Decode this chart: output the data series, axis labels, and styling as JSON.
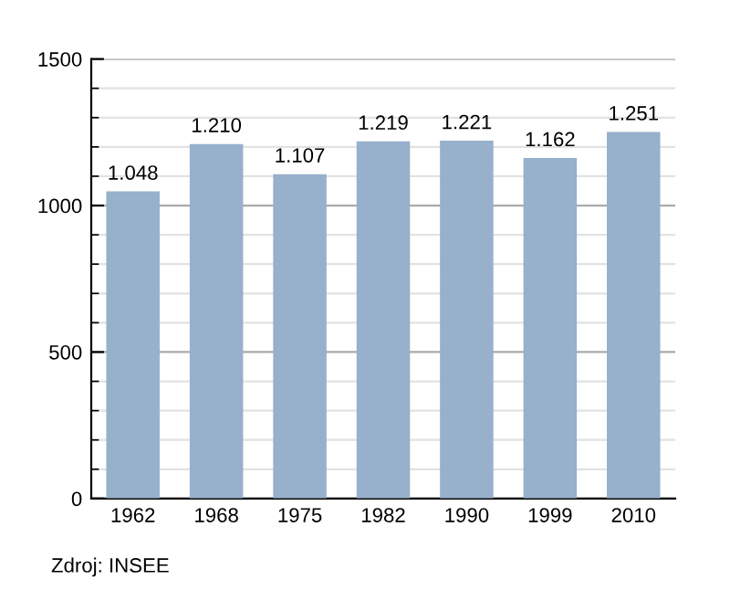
{
  "chart_data": {
    "type": "bar",
    "categories": [
      "1962",
      "1968",
      "1975",
      "1982",
      "1990",
      "1999",
      "2010"
    ],
    "values": [
      1048,
      1210,
      1107,
      1219,
      1221,
      1162,
      1251
    ],
    "value_labels": [
      "1.048",
      "1.210",
      "1.107",
      "1.219",
      "1.221",
      "1.162",
      "1.251"
    ],
    "color": "#97b0cb",
    "ylim": [
      0,
      1500
    ],
    "yticks": [
      0,
      500,
      1000,
      1500
    ],
    "grid": "y",
    "annotations": [
      "Zdroj: INSEE"
    ]
  }
}
